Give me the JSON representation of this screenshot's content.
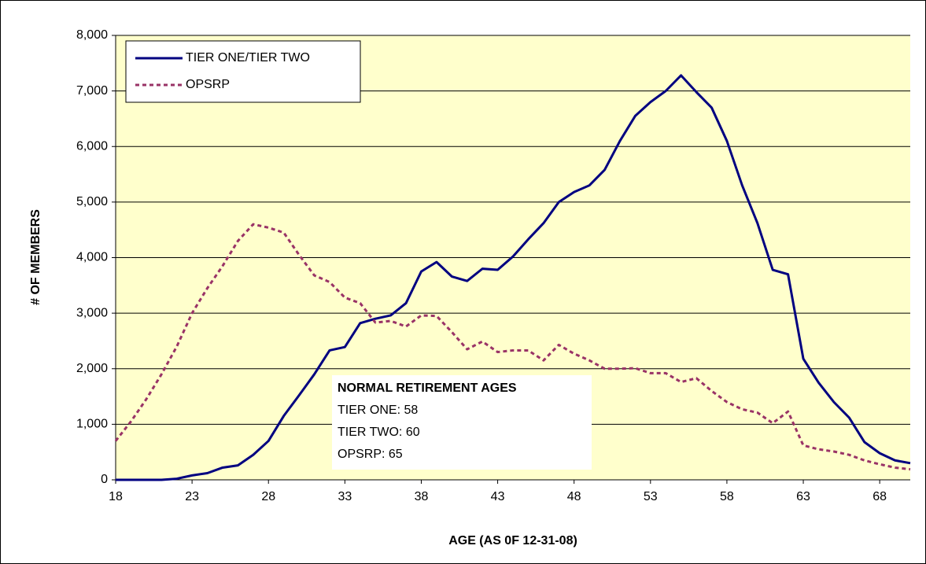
{
  "chart_data": {
    "type": "line",
    "x_label": "AGE (AS 0F 12-31-08)",
    "y_label": "# OF MEMBERS",
    "x": [
      18,
      19,
      20,
      21,
      22,
      23,
      24,
      25,
      26,
      27,
      28,
      29,
      30,
      31,
      32,
      33,
      34,
      35,
      36,
      37,
      38,
      39,
      40,
      41,
      42,
      43,
      44,
      45,
      46,
      47,
      48,
      49,
      50,
      51,
      52,
      53,
      54,
      55,
      56,
      57,
      58,
      59,
      60,
      61,
      62,
      63,
      64,
      65,
      66,
      67,
      68,
      69,
      70
    ],
    "series": [
      {
        "name": "TIER ONE/TIER TWO",
        "color": "#000080",
        "dashed": false,
        "values": [
          0,
          0,
          0,
          0,
          20,
          80,
          120,
          220,
          260,
          450,
          700,
          1150,
          1520,
          1900,
          2330,
          2390,
          2820,
          2900,
          2960,
          3180,
          3750,
          3920,
          3660,
          3580,
          3800,
          3780,
          4020,
          4330,
          4620,
          5000,
          5180,
          5300,
          5580,
          6100,
          6550,
          6800,
          7000,
          7280,
          6980,
          6700,
          6100,
          5300,
          4620,
          3780,
          3700,
          2180,
          1750,
          1400,
          1120,
          680,
          480,
          350,
          300
        ]
      },
      {
        "name": "OPSRP",
        "color": "#993366",
        "dashed": true,
        "values": [
          700,
          1050,
          1450,
          1900,
          2400,
          3000,
          3450,
          3850,
          4300,
          4600,
          4540,
          4450,
          4050,
          3680,
          3560,
          3280,
          3180,
          2830,
          2860,
          2760,
          2960,
          2950,
          2660,
          2350,
          2490,
          2300,
          2330,
          2330,
          2150,
          2430,
          2270,
          2150,
          2000,
          2000,
          2010,
          1920,
          1920,
          1760,
          1830,
          1600,
          1400,
          1270,
          1210,
          1020,
          1230,
          620,
          550,
          510,
          450,
          350,
          280,
          220,
          190
        ]
      }
    ],
    "xlim": [
      18,
      70
    ],
    "xticks": [
      18,
      23,
      28,
      33,
      38,
      43,
      48,
      53,
      58,
      63,
      68
    ],
    "ylim": [
      0,
      8000
    ],
    "yticks": [
      0,
      {
        "value": 1000,
        "label": "1,000"
      },
      {
        "value": 2000,
        "label": "2,000"
      },
      {
        "value": 3000,
        "label": "3,000"
      },
      {
        "value": 4000,
        "label": "4,000"
      },
      {
        "value": 5000,
        "label": "5,000"
      },
      {
        "value": 6000,
        "label": "6,000"
      },
      {
        "value": 7000,
        "label": "7,000"
      },
      {
        "value": 8000,
        "label": "8,000"
      }
    ],
    "grid": true,
    "legend": "upper left",
    "plot_background": "#ffffcc",
    "annotation": [
      "NORMAL RETIREMENT AGES",
      "TIER ONE: 58",
      "TIER TWO: 60",
      "OPSRP: 65"
    ]
  }
}
